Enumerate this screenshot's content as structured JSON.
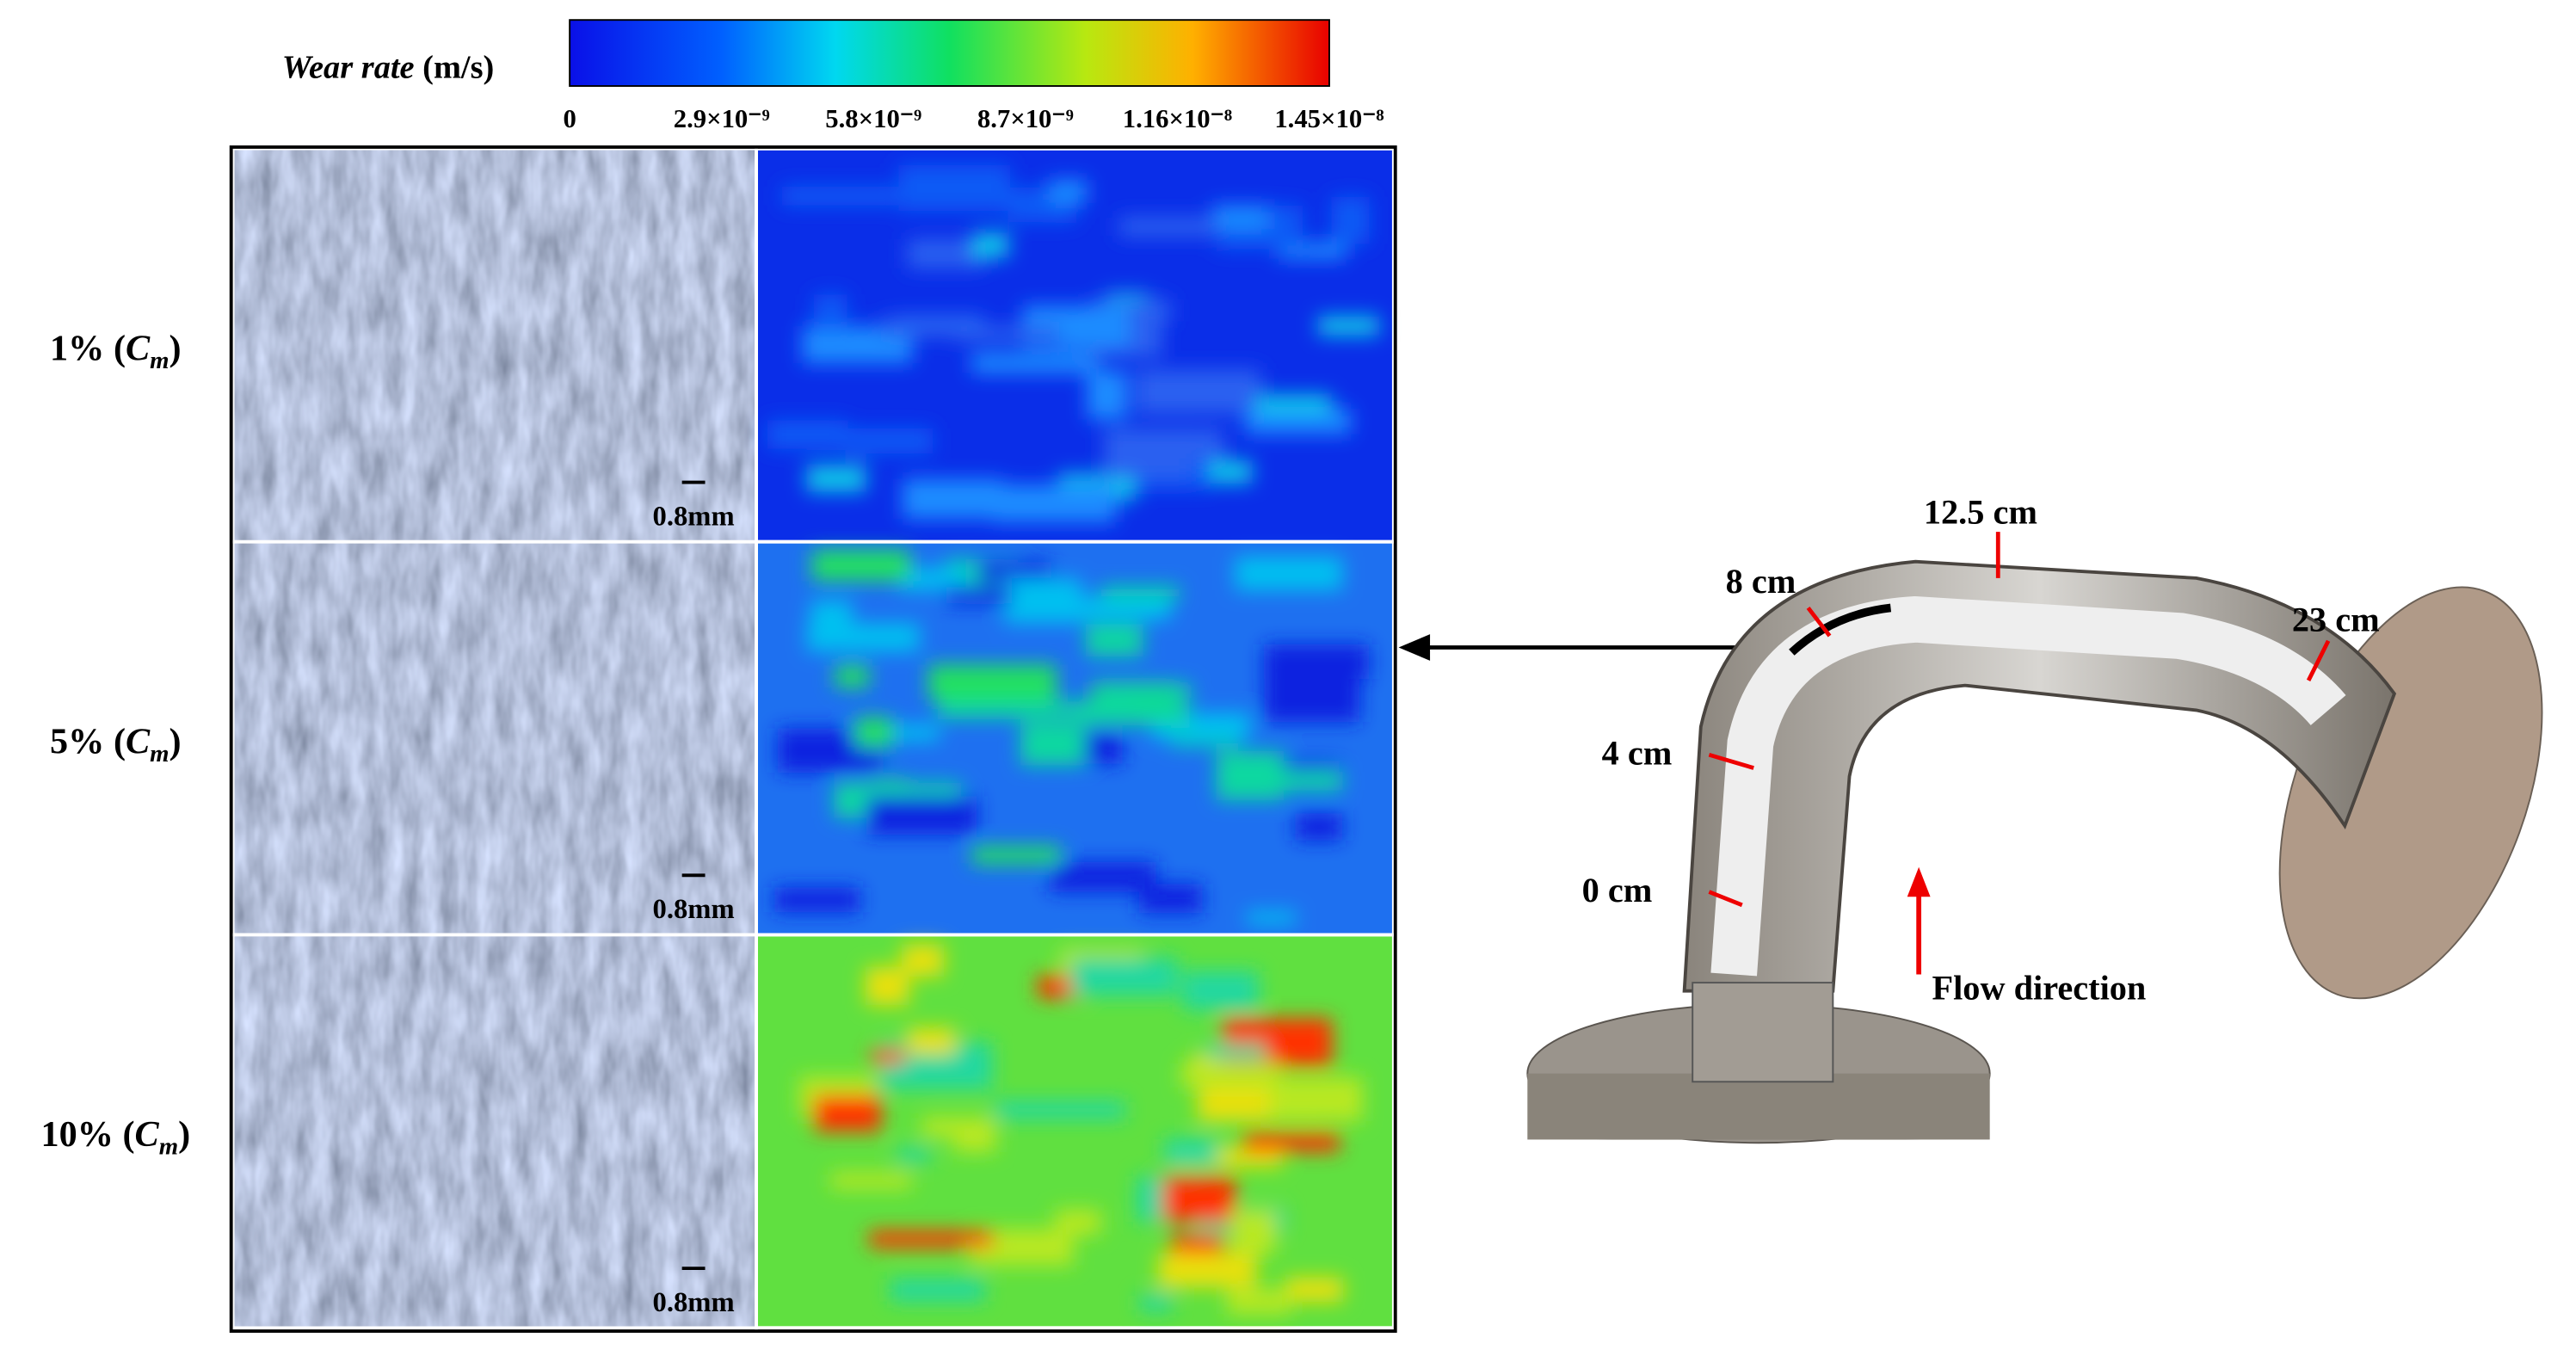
{
  "colorbar": {
    "title": {
      "italic": "Wear rate",
      "unit": "(m/s)"
    },
    "ticks": [
      "0",
      "2.9×10⁻⁹",
      "5.8×10⁻⁹",
      "8.7×10⁻⁹",
      "1.16×10⁻⁸",
      "1.45×10⁻⁸"
    ]
  },
  "rows": [
    {
      "prefix": "1% (",
      "symbol": "C",
      "subscript": "m",
      "suffix": ")",
      "scale_bar": "0.8mm"
    },
    {
      "prefix": "5% (",
      "symbol": "C",
      "subscript": "m",
      "suffix": ")",
      "scale_bar": "0.8mm"
    },
    {
      "prefix": "10% (",
      "symbol": "C",
      "subscript": "m",
      "suffix": ")",
      "scale_bar": "0.8mm"
    }
  ],
  "pipe": {
    "labels": [
      "0 cm",
      "4 cm",
      "8 cm",
      "12.5 cm",
      "23 cm"
    ],
    "flow": "Flow direction"
  }
}
